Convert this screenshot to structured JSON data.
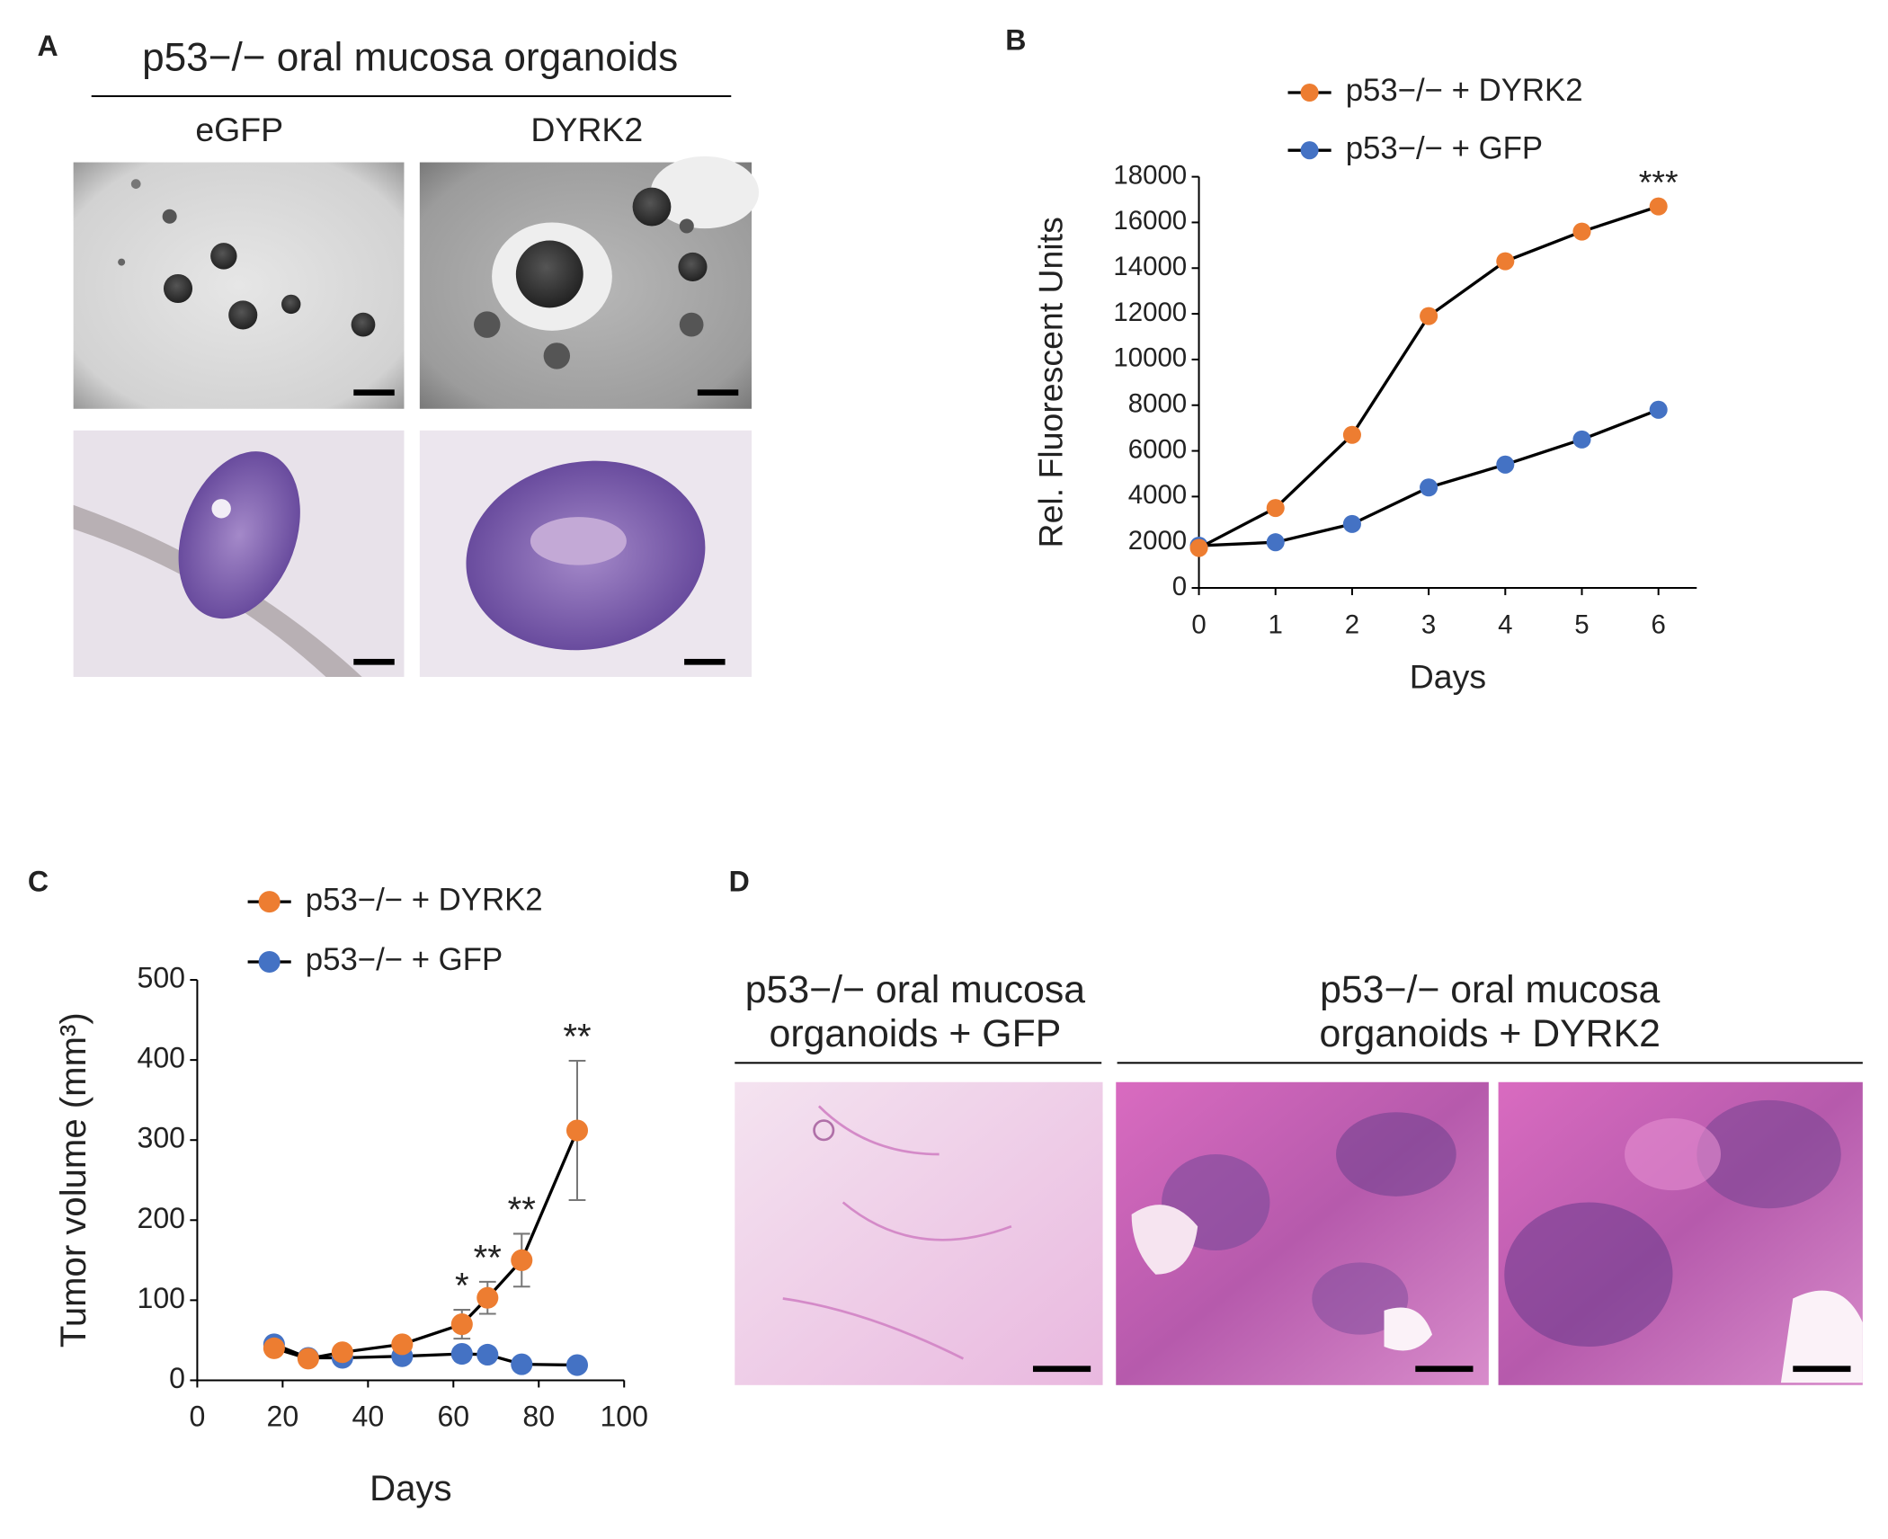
{
  "panel_a": {
    "label": "A",
    "title": "p53−/− oral mucosa organoids",
    "columns": [
      "eGFP",
      "DYRK2"
    ]
  },
  "panel_d": {
    "label": "D",
    "headers": [
      [
        "p53−/− oral mucosa",
        "organoids + GFP"
      ],
      [
        "p53−/− oral mucosa",
        "organoids + DYRK2"
      ]
    ]
  },
  "chart_data": [
    {
      "type": "line",
      "panel_label": "B",
      "x_label": "Days",
      "y_label": "Rel. Fluorescent Units",
      "x": [
        0,
        1,
        2,
        3,
        4,
        5,
        6
      ],
      "xlim": [
        0,
        6.5
      ],
      "xticks": [
        0,
        1,
        2,
        3,
        4,
        5,
        6
      ],
      "ylim": [
        0,
        18000
      ],
      "yticks": [
        0,
        2000,
        4000,
        6000,
        8000,
        10000,
        12000,
        14000,
        16000,
        18000
      ],
      "line_color": "#000000",
      "series": [
        {
          "name": "p53−/− + DYRK2",
          "color": "#ED7D31",
          "values": [
            1750,
            3500,
            6700,
            11900,
            14300,
            15600,
            16700
          ]
        },
        {
          "name": "p53−/− + GFP",
          "color": "#4472C4",
          "values": [
            1850,
            2000,
            2800,
            4400,
            5400,
            6500,
            7800
          ]
        }
      ],
      "annotations": [
        {
          "x": 6,
          "label": "***"
        }
      ]
    },
    {
      "type": "line",
      "panel_label": "C",
      "x_label": "Days",
      "y_label": "Tumor volume (mm³)",
      "x": [
        18,
        26,
        34,
        48,
        62,
        68,
        76,
        89
      ],
      "xlim": [
        0,
        100
      ],
      "xticks": [
        0,
        20,
        40,
        60,
        80,
        100
      ],
      "ylim": [
        0,
        500
      ],
      "yticks": [
        0,
        100,
        200,
        300,
        400,
        500
      ],
      "line_color": "#000000",
      "series": [
        {
          "name": "p53−/− + DYRK2",
          "color": "#ED7D31",
          "values": [
            40,
            27,
            35,
            45,
            70,
            103,
            150,
            312
          ],
          "errors": [
            5,
            3,
            3,
            4,
            18,
            20,
            33,
            87
          ]
        },
        {
          "name": "p53−/− + GFP",
          "color": "#4472C4",
          "values": [
            45,
            28,
            28,
            30,
            33,
            32,
            20,
            19
          ]
        }
      ],
      "annotations": [
        {
          "x": 62,
          "label": "*"
        },
        {
          "x": 68,
          "label": "**"
        },
        {
          "x": 76,
          "label": "**"
        },
        {
          "x": 89,
          "label": "**"
        }
      ]
    }
  ]
}
